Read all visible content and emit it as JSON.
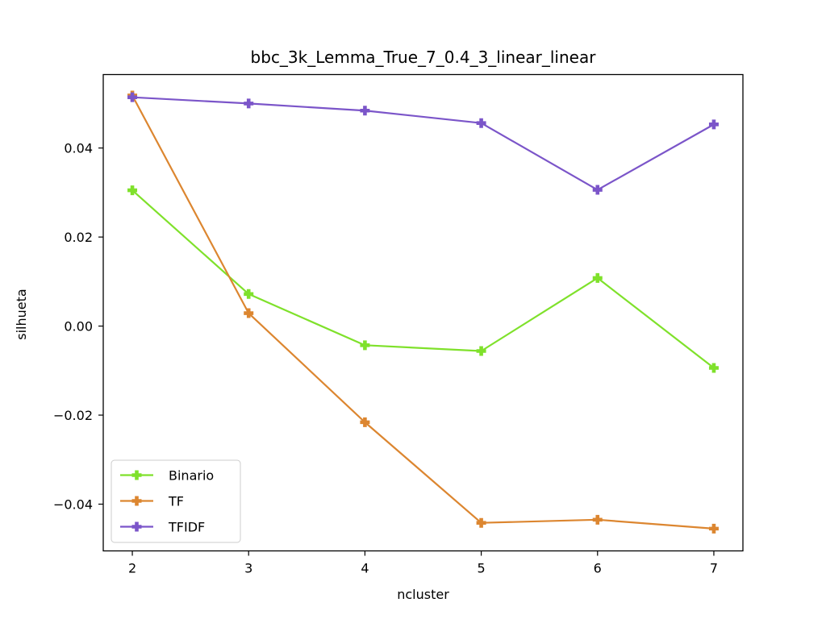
{
  "chart_data": {
    "type": "line",
    "title": "bbc_3k_Lemma_True_7_0.4_3_linear_linear",
    "xlabel": "ncluster",
    "ylabel": "silhueta",
    "x": [
      2,
      3,
      4,
      5,
      6,
      7
    ],
    "xlim": [
      1.75,
      7.25
    ],
    "ylim": [
      -0.0505,
      0.0565
    ],
    "yticks": [
      -0.04,
      -0.02,
      0.0,
      0.02,
      0.04
    ],
    "ytick_labels": [
      "−0.04",
      "−0.02",
      "0.00",
      "0.02",
      "0.04"
    ],
    "xtick_labels": [
      "2",
      "3",
      "4",
      "5",
      "6",
      "7"
    ],
    "grid": false,
    "legend_position": "lower-left",
    "marker": "plus-filled",
    "series": [
      {
        "name": "Binario",
        "color": "#7fe12b",
        "values": [
          0.0305,
          0.0072,
          -0.0043,
          -0.0056,
          0.0108,
          -0.0094
        ]
      },
      {
        "name": "TF",
        "color": "#dc8630",
        "values": [
          0.0518,
          0.0029,
          -0.0216,
          -0.0442,
          -0.0435,
          -0.0455
        ]
      },
      {
        "name": "TFIDF",
        "color": "#7b55c9",
        "values": [
          0.0514,
          0.05,
          0.0484,
          0.0456,
          0.0306,
          0.0453
        ]
      }
    ]
  }
}
